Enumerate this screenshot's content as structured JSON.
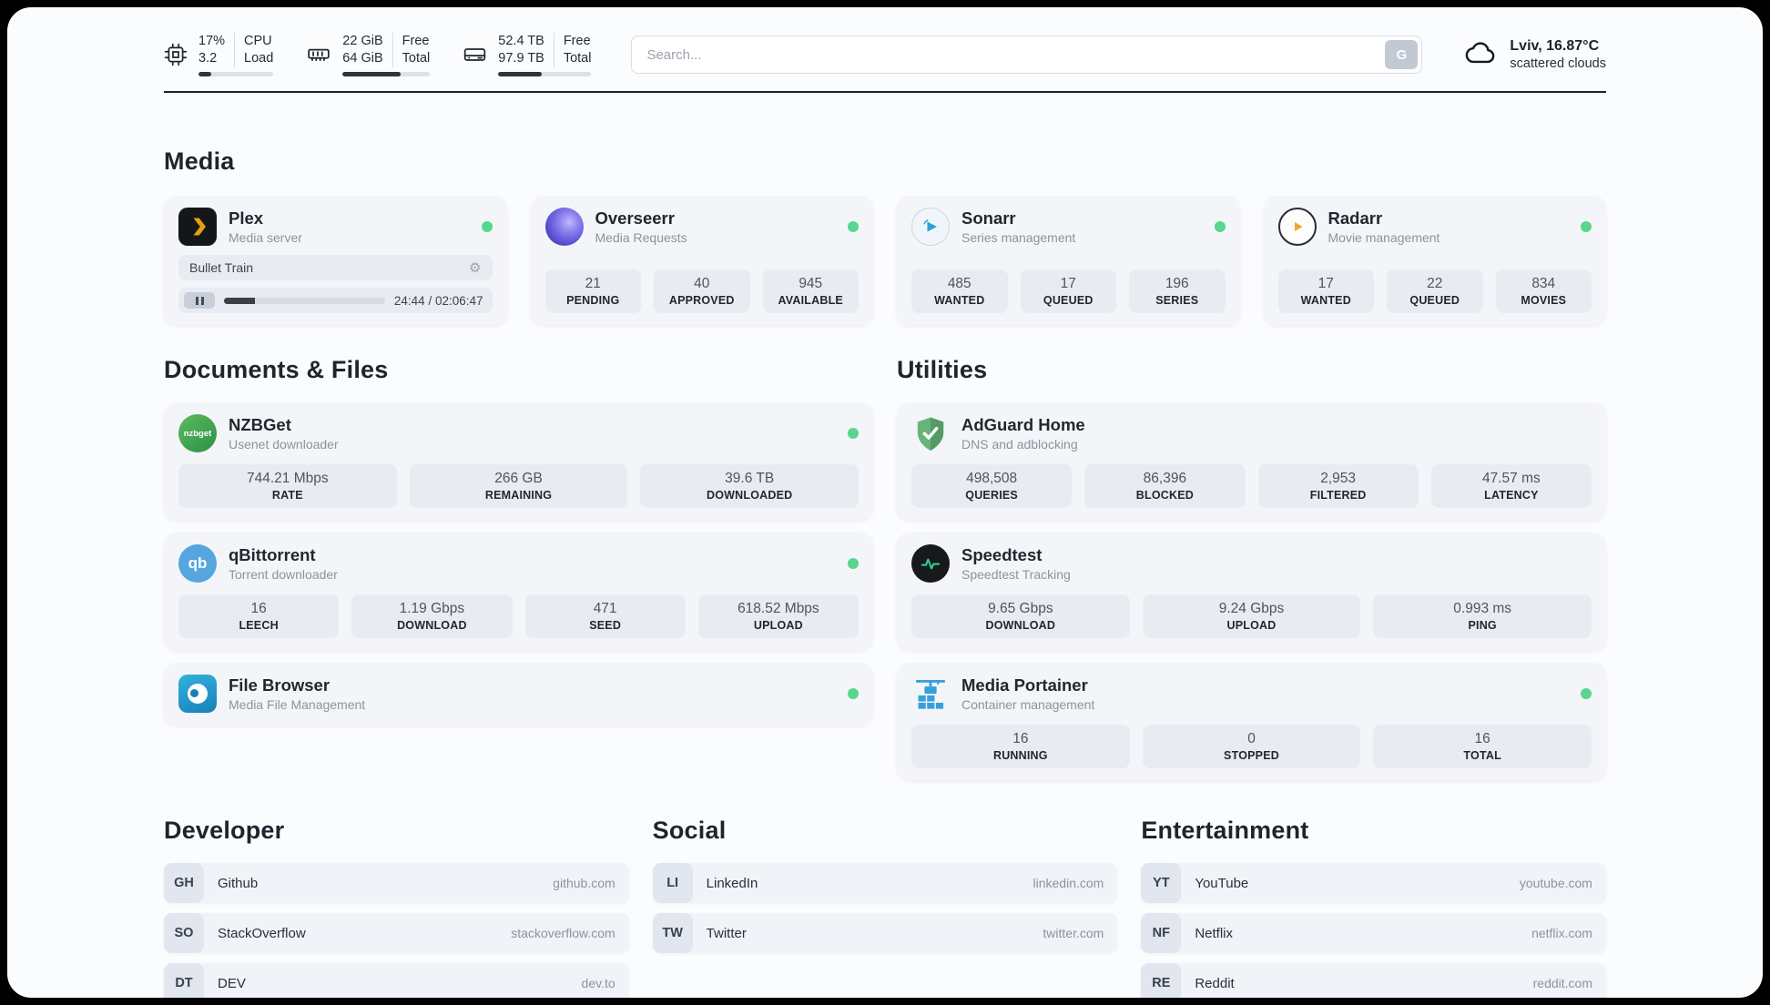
{
  "colors": {
    "status_green": "#58d68d",
    "card_bg": "#f3f5f9",
    "tile_bg": "#e8ecf2",
    "plex_amber": "#e5a00d"
  },
  "topbar": {
    "metrics": [
      {
        "icon": "cpu-icon",
        "value_top": "17%",
        "value_bottom": "3.2",
        "label_top": "CPU",
        "label_bottom": "Load",
        "progress": 17
      },
      {
        "icon": "ram-icon",
        "value_top": "22 GiB",
        "value_bottom": "64 GiB",
        "label_top": "Free",
        "label_bottom": "Total",
        "progress": 66
      },
      {
        "icon": "disk-icon",
        "value_top": "52.4 TB",
        "value_bottom": "97.9 TB",
        "label_top": "Free",
        "label_bottom": "Total",
        "progress": 47
      }
    ],
    "search": {
      "placeholder": "Search...",
      "button_label": "G"
    },
    "weather": {
      "location": "Lviv, 16.87°C",
      "condition": "scattered clouds"
    }
  },
  "media": {
    "title": "Media",
    "plex": {
      "name": "Plex",
      "desc": "Media server",
      "now_playing": "Bullet Train",
      "gear_icon": "⚙",
      "time": "24:44 / 02:06:47",
      "progress": 19
    },
    "overseerr": {
      "name": "Overseerr",
      "desc": "Media Requests",
      "stats": [
        {
          "value": "21",
          "label": "PENDING"
        },
        {
          "value": "40",
          "label": "APPROVED"
        },
        {
          "value": "945",
          "label": "AVAILABLE"
        }
      ]
    },
    "sonarr": {
      "name": "Sonarr",
      "desc": "Series management",
      "stats": [
        {
          "value": "485",
          "label": "WANTED"
        },
        {
          "value": "17",
          "label": "QUEUED"
        },
        {
          "value": "196",
          "label": "SERIES"
        }
      ]
    },
    "radarr": {
      "name": "Radarr",
      "desc": "Movie management",
      "stats": [
        {
          "value": "17",
          "label": "WANTED"
        },
        {
          "value": "22",
          "label": "QUEUED"
        },
        {
          "value": "834",
          "label": "MOVIES"
        }
      ]
    }
  },
  "documents": {
    "title": "Documents & Files",
    "nzbget": {
      "name": "NZBGet",
      "desc": "Usenet downloader",
      "icon_label": "nzbget",
      "stats": [
        {
          "value": "744.21 Mbps",
          "label": "RATE"
        },
        {
          "value": "266 GB",
          "label": "REMAINING"
        },
        {
          "value": "39.6 TB",
          "label": "DOWNLOADED"
        }
      ]
    },
    "qbittorrent": {
      "name": "qBittorrent",
      "desc": "Torrent downloader",
      "icon_label": "qb",
      "stats": [
        {
          "value": "16",
          "label": "LEECH"
        },
        {
          "value": "1.19 Gbps",
          "label": "DOWNLOAD"
        },
        {
          "value": "471",
          "label": "SEED"
        },
        {
          "value": "618.52 Mbps",
          "label": "UPLOAD"
        }
      ]
    },
    "filebrowser": {
      "name": "File Browser",
      "desc": "Media File Management"
    }
  },
  "utilities": {
    "title": "Utilities",
    "adguard": {
      "name": "AdGuard Home",
      "desc": "DNS and adblocking",
      "stats": [
        {
          "value": "498,508",
          "label": "QUERIES"
        },
        {
          "value": "86,396",
          "label": "BLOCKED"
        },
        {
          "value": "2,953",
          "label": "FILTERED"
        },
        {
          "value": "47.57 ms",
          "label": "LATENCY"
        }
      ]
    },
    "speedtest": {
      "name": "Speedtest",
      "desc": "Speedtest Tracking",
      "stats": [
        {
          "value": "9.65 Gbps",
          "label": "DOWNLOAD"
        },
        {
          "value": "9.24 Gbps",
          "label": "UPLOAD"
        },
        {
          "value": "0.993 ms",
          "label": "PING"
        }
      ]
    },
    "portainer": {
      "name": "Media Portainer",
      "desc": "Container management",
      "stats": [
        {
          "value": "16",
          "label": "RUNNING"
        },
        {
          "value": "0",
          "label": "STOPPED"
        },
        {
          "value": "16",
          "label": "TOTAL"
        }
      ]
    }
  },
  "bookmarks": [
    {
      "title": "Developer",
      "items": [
        {
          "abbr": "GH",
          "name": "Github",
          "url": "github.com"
        },
        {
          "abbr": "SO",
          "name": "StackOverflow",
          "url": "stackoverflow.com"
        },
        {
          "abbr": "DT",
          "name": "DEV",
          "url": "dev.to"
        }
      ]
    },
    {
      "title": "Social",
      "items": [
        {
          "abbr": "LI",
          "name": "LinkedIn",
          "url": "linkedin.com"
        },
        {
          "abbr": "TW",
          "name": "Twitter",
          "url": "twitter.com"
        }
      ]
    },
    {
      "title": "Entertainment",
      "items": [
        {
          "abbr": "YT",
          "name": "YouTube",
          "url": "youtube.com"
        },
        {
          "abbr": "NF",
          "name": "Netflix",
          "url": "netflix.com"
        },
        {
          "abbr": "RE",
          "name": "Reddit",
          "url": "reddit.com"
        }
      ]
    }
  ]
}
